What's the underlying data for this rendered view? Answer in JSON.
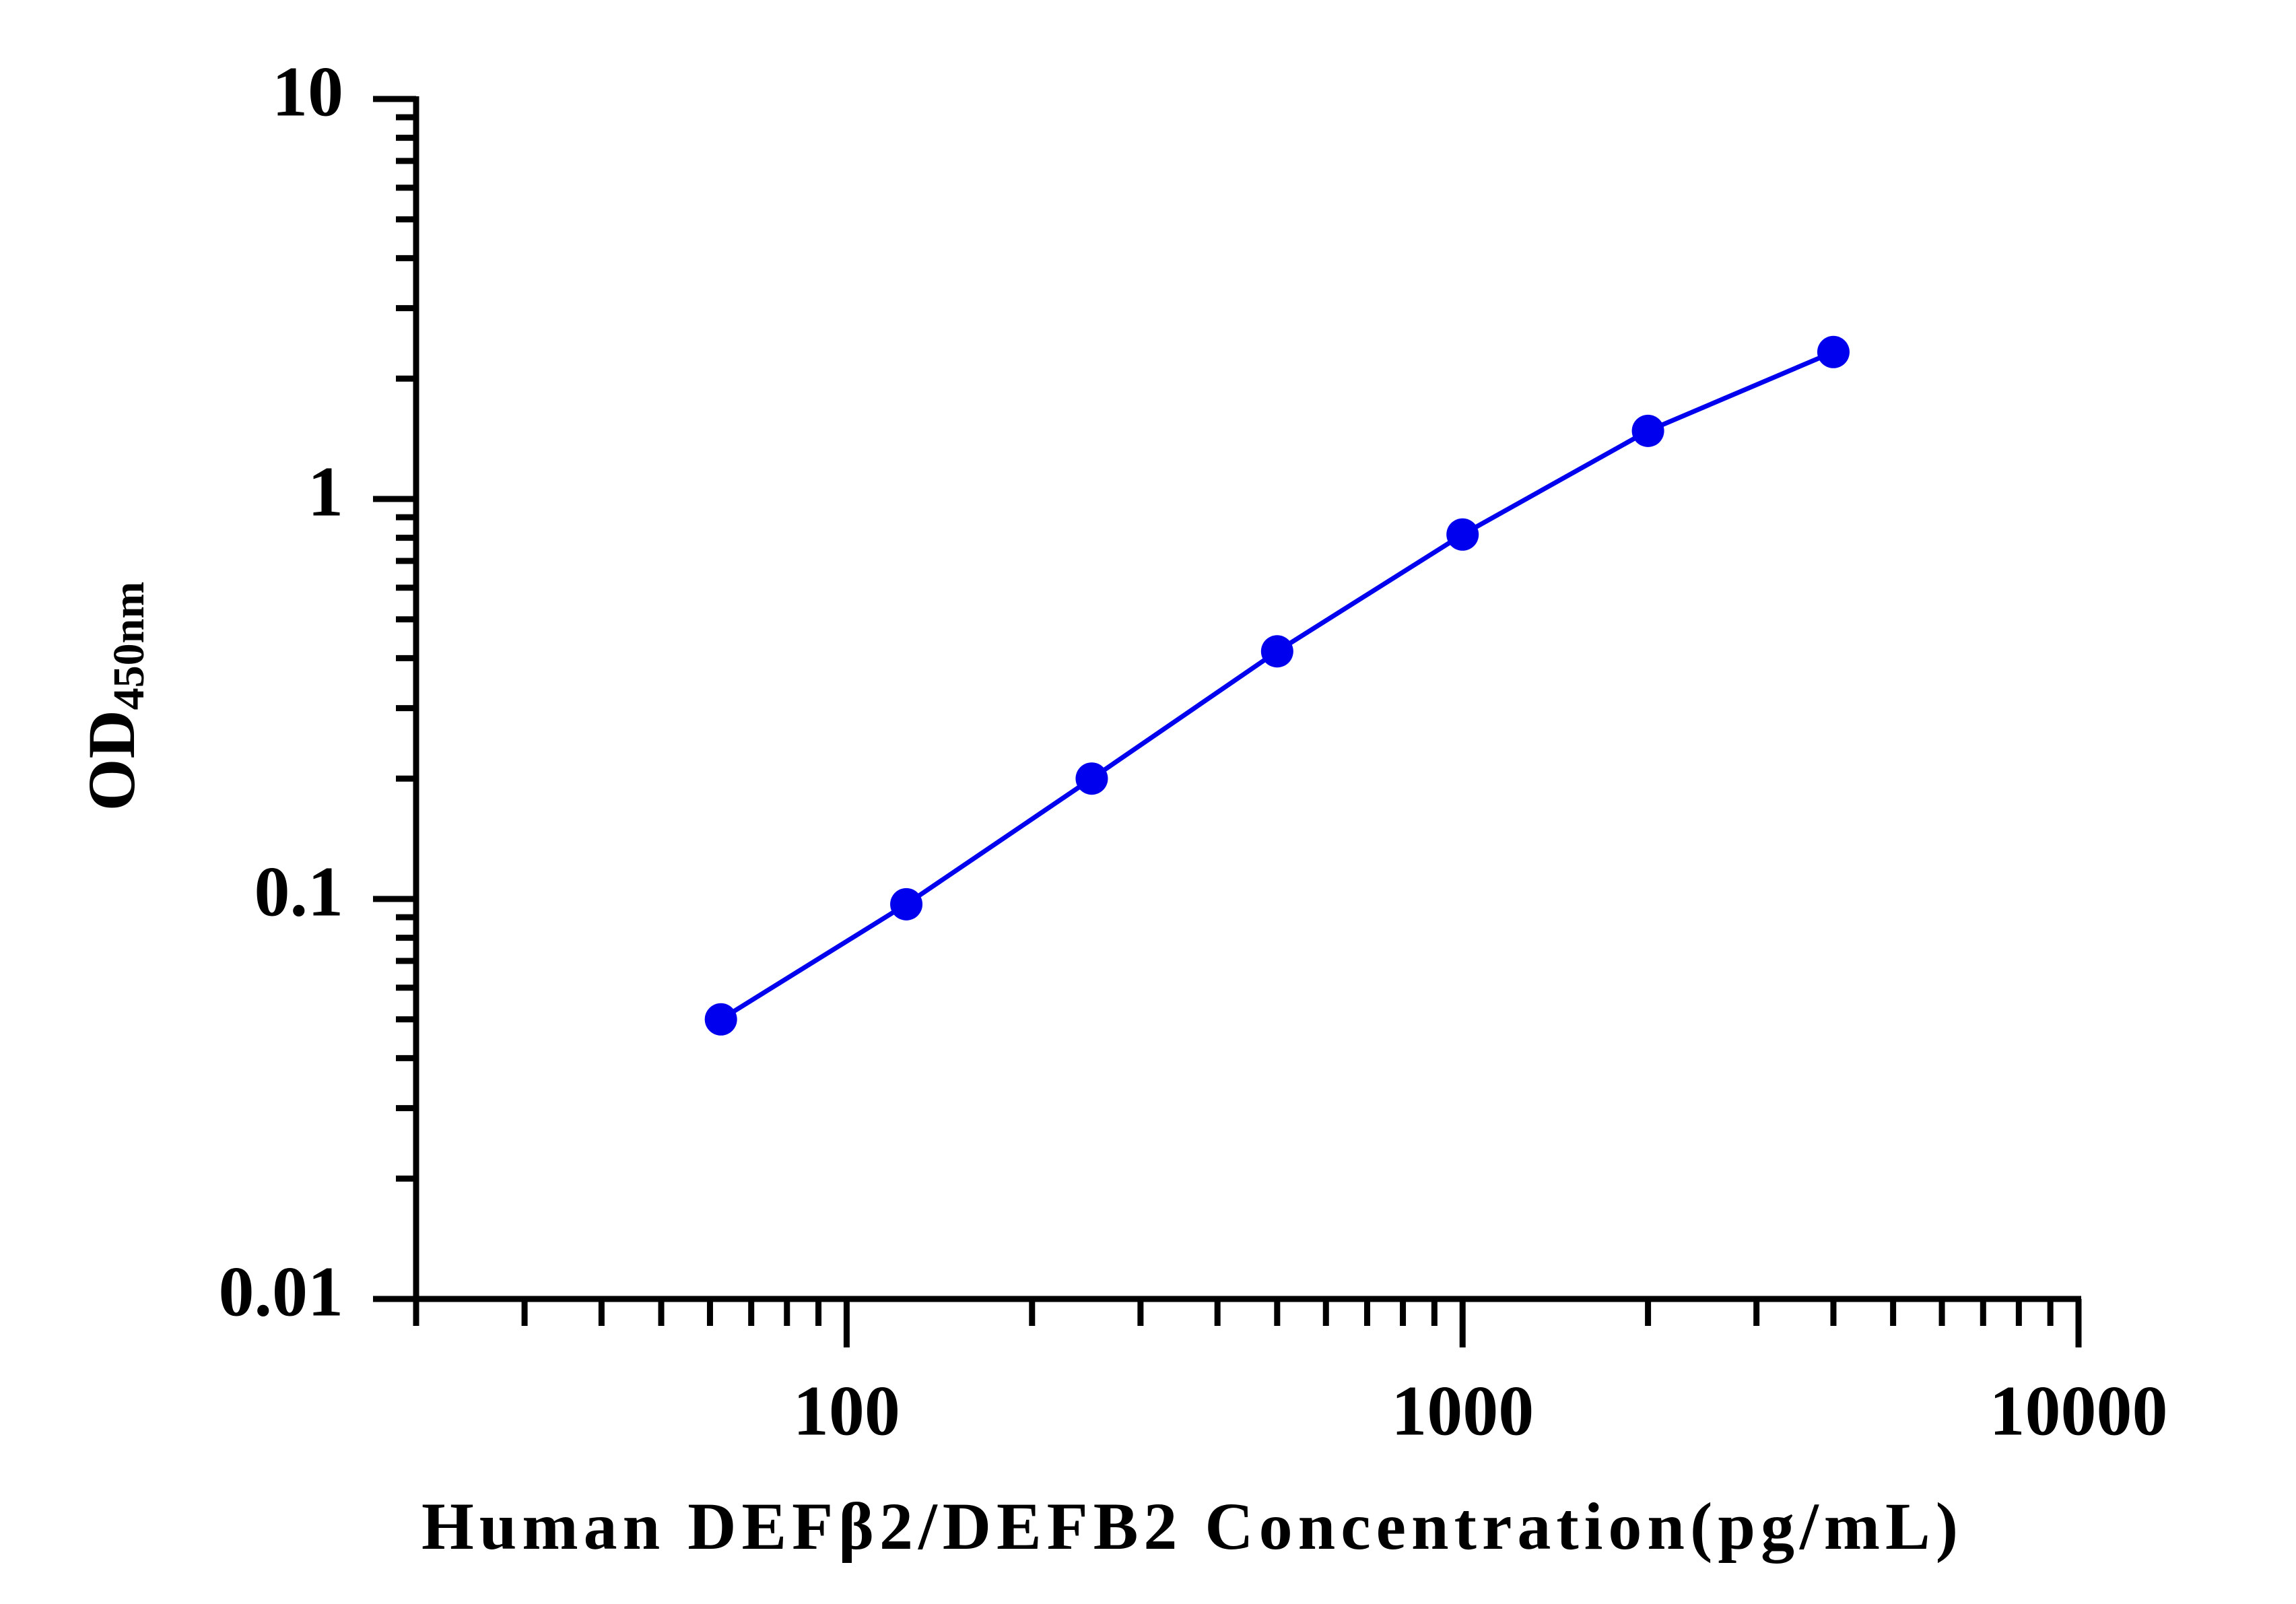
{
  "chart_data": {
    "type": "line",
    "xlabel": "Human DEFβ2/DEFB2 Concentration(pg/mL)",
    "ylabel": {
      "text": "OD",
      "subscript": "450nm"
    },
    "x": [
      62.5,
      125,
      250,
      500,
      1000,
      2000,
      4000
    ],
    "series": [
      {
        "color": "#0000ee",
        "values": [
          0.05,
          0.097,
          0.2,
          0.416,
          0.815,
          1.48,
          2.33
        ]
      }
    ],
    "xscale": "log",
    "yscale": "log",
    "xlim": [
      20,
      10000
    ],
    "ylim": [
      0.01,
      10
    ],
    "xticks": [
      100,
      1000,
      10000
    ],
    "yticks": [
      0.01,
      0.1,
      1,
      10
    ],
    "xminorticks": [
      20,
      30,
      40,
      50,
      60,
      70,
      80,
      90,
      200,
      300,
      400,
      500,
      600,
      700,
      800,
      900,
      2000,
      3000,
      4000,
      5000,
      6000,
      7000,
      8000,
      9000
    ],
    "yminorticks": [
      0.02,
      0.03,
      0.04,
      0.05,
      0.06,
      0.07,
      0.08,
      0.09,
      0.2,
      0.3,
      0.4,
      0.5,
      0.6,
      0.7,
      0.8,
      0.9,
      2,
      3,
      4,
      5,
      6,
      7,
      8,
      9
    ],
    "grid": false
  }
}
